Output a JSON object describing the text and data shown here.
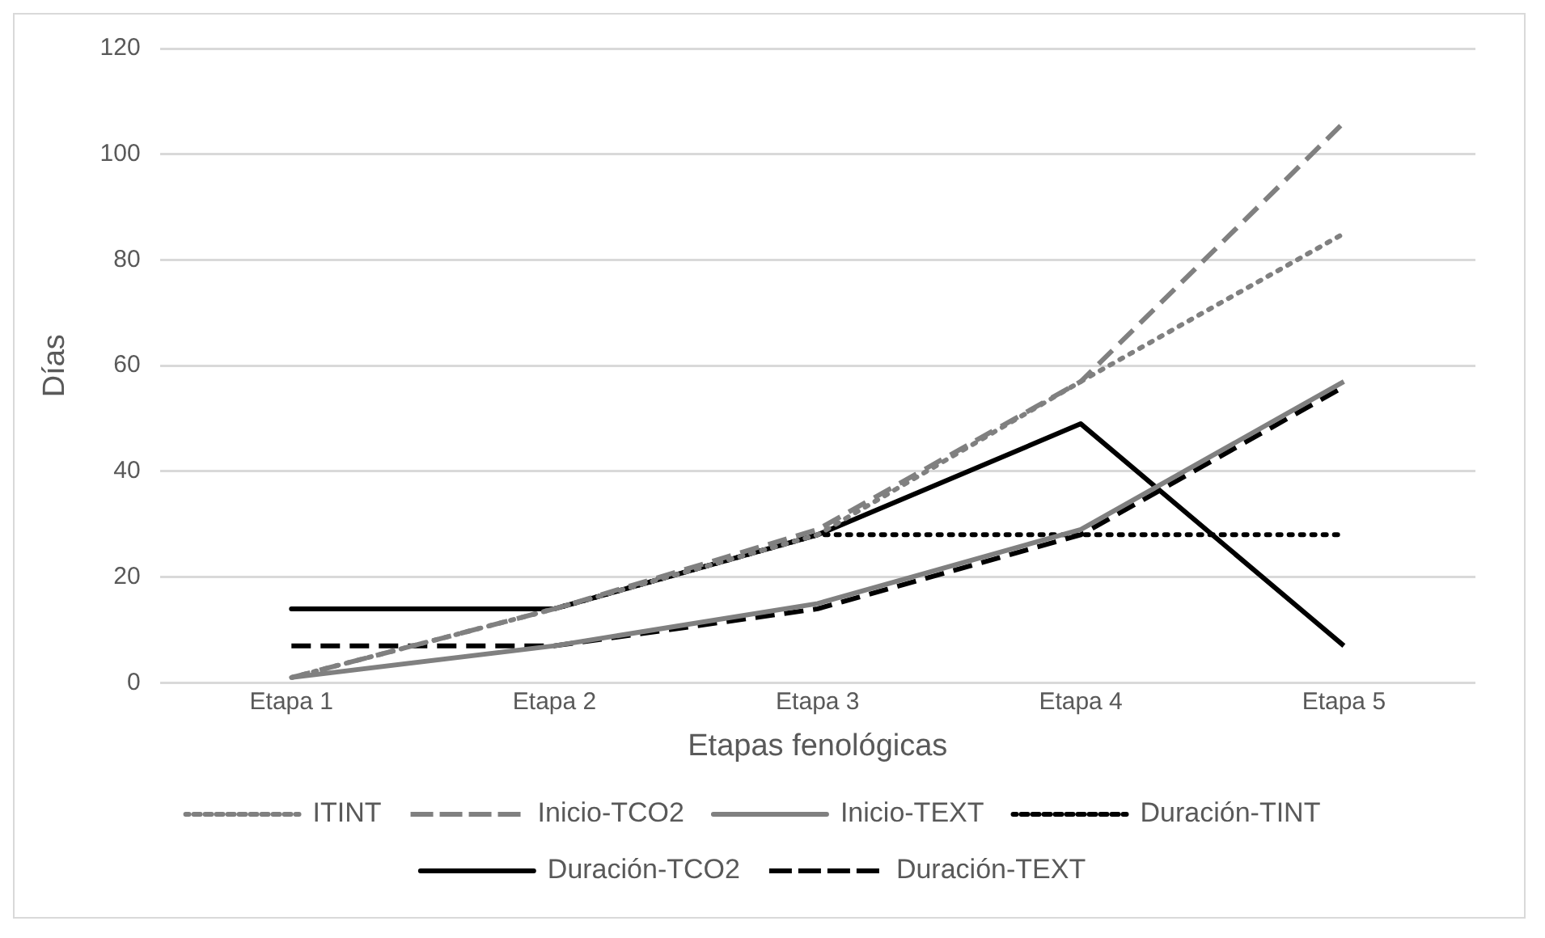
{
  "chart_data": {
    "type": "line",
    "xlabel": "Etapas fenológicas",
    "ylabel": "Días",
    "categories": [
      "Etapa 1",
      "Etapa 2",
      "Etapa 3",
      "Etapa 4",
      "Etapa 5"
    ],
    "series": [
      {
        "name": "ITINT",
        "color": "#808080",
        "line_style": "dotted",
        "values": [
          1,
          14,
          28,
          57,
          85
        ]
      },
      {
        "name": "Inicio-TCO2",
        "color": "#808080",
        "line_style": "dashed",
        "values": [
          1,
          14,
          29,
          57,
          106
        ]
      },
      {
        "name": "Inicio-TEXT",
        "color": "#808080",
        "line_style": "solid",
        "values": [
          1,
          7,
          15,
          29,
          57
        ]
      },
      {
        "name": "Duración-TINT",
        "color": "#000000",
        "line_style": "dotted",
        "values": [
          14,
          14,
          28,
          28,
          28
        ]
      },
      {
        "name": "Duración-TCO2",
        "color": "#000000",
        "line_style": "solid",
        "values": [
          14,
          14,
          28,
          49,
          7
        ]
      },
      {
        "name": "Duración-TEXT",
        "color": "#000000",
        "line_style": "dashed",
        "values": [
          7,
          7,
          14,
          28,
          56
        ]
      }
    ],
    "ylim": [
      0,
      120
    ],
    "yticks": [
      0,
      20,
      40,
      60,
      80,
      100,
      120
    ],
    "grid": "y",
    "legend": "bottom",
    "marker": "none"
  }
}
